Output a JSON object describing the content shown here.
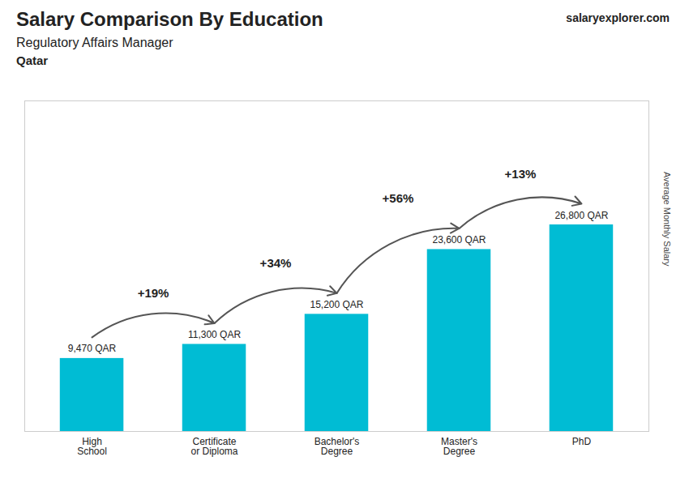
{
  "chart_data": {
    "type": "bar",
    "title": "Salary Comparison By Education",
    "subtitle": "Regulatory Affairs Manager",
    "annotations": {
      "country": "Qatar",
      "site": [
        "salary",
        "explorer.com"
      ],
      "changes": [
        "+19%",
        "+34%",
        "+56%",
        "+13%"
      ]
    },
    "ylabel": "Average Monthly Salary",
    "categories": [
      "High\nSchool",
      "Certificate\nor Diploma",
      "Bachelor's\nDegree",
      "Master's\nDegree",
      "PhD"
    ],
    "values": [
      9470,
      11300,
      15200,
      23600,
      26800
    ],
    "value_labels": [
      "9,470 QAR",
      "11,300 QAR",
      "15,200 QAR",
      "23,600 QAR",
      "26,800 QAR"
    ],
    "data_labels": true,
    "color": "#00bcd4",
    "ylim": [
      0,
      42880
    ],
    "tick_labels": "x",
    "grid": false
  }
}
